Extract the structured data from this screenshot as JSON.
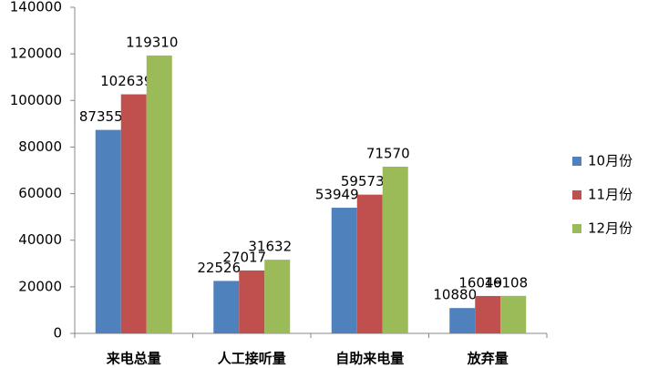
{
  "chart_data": {
    "type": "bar",
    "categories": [
      "来电总量",
      "人工接听量",
      "自助来电量",
      "放弃量"
    ],
    "series": [
      {
        "name": "10月份",
        "color": "#4f81bd",
        "values": [
          87355,
          22526,
          53949,
          10880
        ]
      },
      {
        "name": "11月份",
        "color": "#c0504d",
        "values": [
          102639,
          27017,
          59573,
          16049
        ]
      },
      {
        "name": "12月份",
        "color": "#9bbb59",
        "values": [
          119310,
          31632,
          71570,
          16108
        ]
      }
    ],
    "ylim": [
      0,
      140000
    ],
    "yticks": [
      0,
      20000,
      40000,
      60000,
      80000,
      100000,
      120000,
      140000
    ],
    "legend": "right"
  }
}
